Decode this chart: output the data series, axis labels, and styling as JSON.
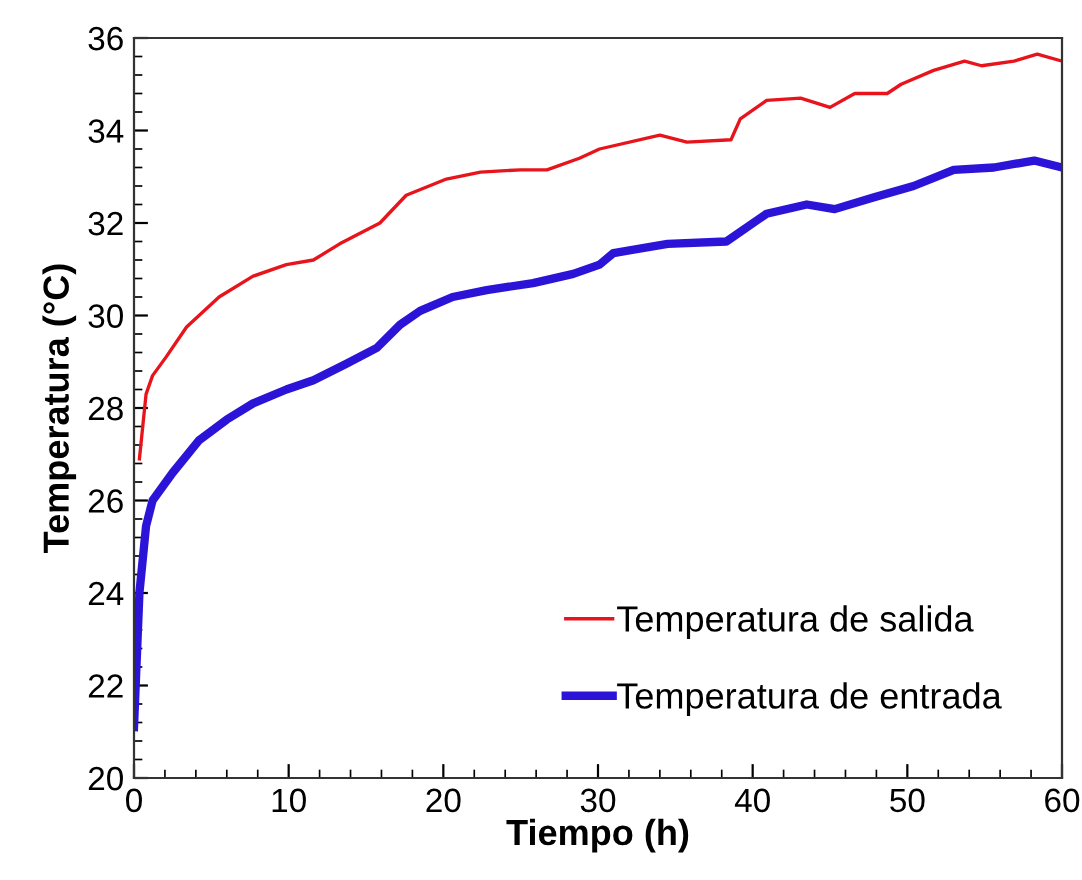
{
  "chart_data": {
    "type": "line",
    "xlabel": "Tiempo (h)",
    "ylabel": "Temperatura (°C)",
    "xlim": [
      0,
      60
    ],
    "xticks": [
      0,
      10,
      20,
      30,
      40,
      50,
      60
    ],
    "ylim": [
      20,
      36
    ],
    "yticks": [
      20,
      22,
      24,
      26,
      28,
      30,
      32,
      34,
      36
    ],
    "grid": false,
    "legend": "bottom right",
    "marker": "none",
    "line_style": "solid",
    "series": [
      {
        "name": "Temperatura de salida",
        "color": "#e8141c",
        "x": [
          0.35,
          0.78,
          1.2,
          2.07,
          3.4,
          5.5,
          7.7,
          9.85,
          11.6,
          13.3,
          15.9,
          17.6,
          20.2,
          22.4,
          25.0,
          26.7,
          28.8,
          30.1,
          34.0,
          35.75,
          38.6,
          39.2,
          40.9,
          43.1,
          45.0,
          46.6,
          48.7,
          49.6,
          51.7,
          53.7,
          54.8,
          56.9,
          58.4,
          60
        ],
        "values": [
          26.9,
          28.3,
          28.7,
          29.1,
          29.75,
          30.4,
          30.85,
          31.1,
          31.2,
          31.55,
          32.0,
          32.6,
          32.95,
          33.1,
          33.15,
          33.15,
          33.4,
          33.6,
          33.9,
          33.75,
          33.8,
          34.25,
          34.65,
          34.7,
          34.5,
          34.8,
          34.8,
          35.0,
          35.3,
          35.5,
          35.4,
          35.5,
          35.65,
          35.5
        ]
      },
      {
        "name": "Temperatura de entrada",
        "color": "#2b14d8",
        "x": [
          0,
          0.35,
          0.78,
          1.2,
          2.5,
          4.2,
          6.0,
          7.7,
          9.85,
          11.6,
          13.7,
          15.7,
          17.2,
          18.5,
          20.6,
          22.8,
          25.8,
          28.4,
          30.1,
          31.0,
          34.5,
          38.3,
          40.9,
          43.5,
          45.3,
          47.8,
          50.4,
          53.0,
          55.6,
          58.2,
          60
        ],
        "values": [
          21.1,
          24.0,
          25.45,
          26.0,
          26.6,
          27.3,
          27.75,
          28.1,
          28.4,
          28.6,
          28.95,
          29.3,
          29.8,
          30.1,
          30.4,
          30.55,
          30.7,
          30.9,
          31.1,
          31.35,
          31.55,
          31.6,
          32.2,
          32.4,
          32.3,
          32.55,
          32.8,
          33.15,
          33.2,
          33.35,
          33.2
        ]
      }
    ]
  }
}
